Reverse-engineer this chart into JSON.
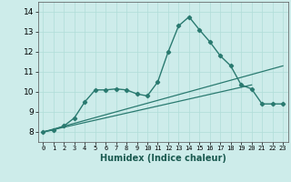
{
  "xlabel": "Humidex (Indice chaleur)",
  "background_color": "#cdecea",
  "grid_color": "#b0ddd8",
  "line_color": "#2a7a70",
  "xlim": [
    -0.5,
    23.5
  ],
  "ylim": [
    7.5,
    14.5
  ],
  "xticks": [
    0,
    1,
    2,
    3,
    4,
    5,
    6,
    7,
    8,
    9,
    10,
    11,
    12,
    13,
    14,
    15,
    16,
    17,
    18,
    19,
    20,
    21,
    22,
    23
  ],
  "yticks": [
    8,
    9,
    10,
    11,
    12,
    13,
    14
  ],
  "line1_x": [
    0,
    1,
    2,
    3,
    4,
    5,
    6,
    7,
    8,
    9,
    10,
    11,
    12,
    13,
    14,
    15,
    16,
    17,
    18,
    19,
    20,
    21,
    22,
    23
  ],
  "line1_y": [
    8.0,
    8.1,
    8.3,
    8.7,
    9.5,
    10.1,
    10.1,
    10.15,
    10.1,
    9.9,
    9.8,
    10.5,
    12.0,
    13.3,
    13.75,
    13.1,
    12.5,
    11.8,
    11.3,
    10.35,
    10.15,
    9.4,
    9.4,
    9.4
  ],
  "line2_x": [
    0,
    23
  ],
  "line2_y": [
    8.0,
    11.3
  ],
  "line3_x": [
    0,
    20
  ],
  "line3_y": [
    8.0,
    10.35
  ]
}
